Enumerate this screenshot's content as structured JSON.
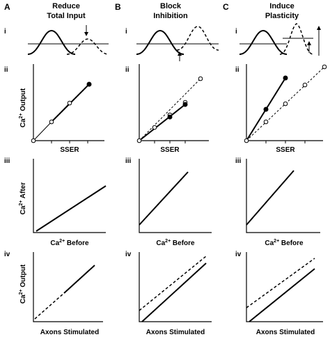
{
  "panels": [
    {
      "letter": "A",
      "title_line1": "Reduce",
      "title_line2": "Total Input"
    },
    {
      "letter": "B",
      "title_line1": "Block",
      "title_line2": "Inhibition"
    },
    {
      "letter": "C",
      "title_line1": "Induce",
      "title_line2": "Plasticity"
    }
  ],
  "row_labels": {
    "i": "i",
    "ii": "ii",
    "iii": "iii",
    "iv": "iv"
  },
  "y_labels": {
    "ii": {
      "main": "Ca",
      "sup": "2+",
      "rest": " Output"
    },
    "iii": {
      "main": "Ca",
      "sup": "2+",
      "rest": " After"
    },
    "iv": {
      "main": "Ca",
      "sup": "2+",
      "rest": " Output"
    }
  },
  "x_labels": {
    "ii": "SSER",
    "iii": {
      "main": "Ca",
      "sup": "2+",
      "rest": " Before"
    },
    "iv": "Axons Stimulated"
  }
}
